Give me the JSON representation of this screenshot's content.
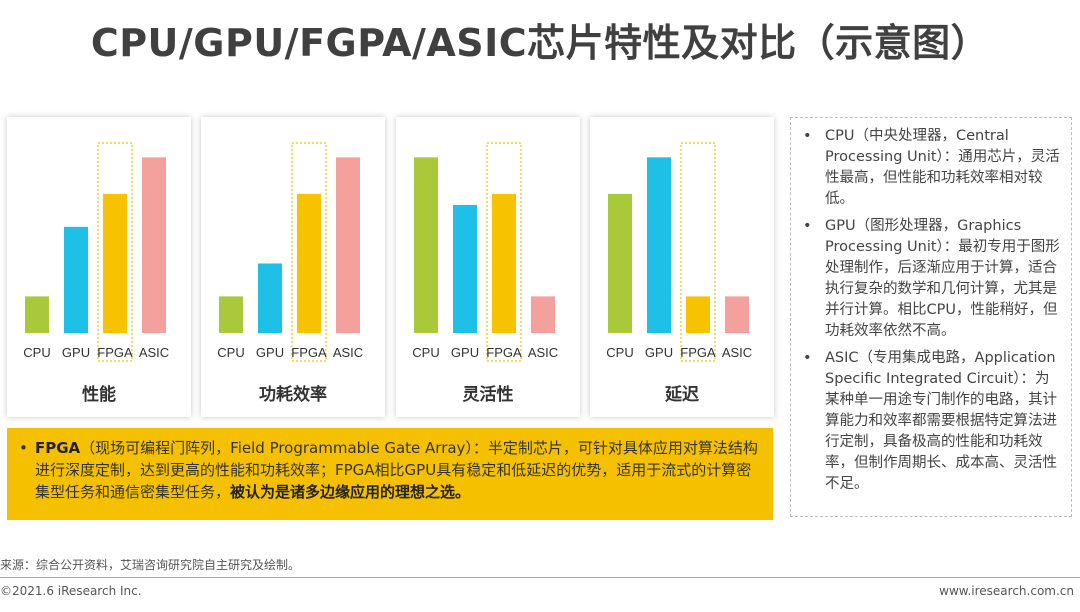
{
  "title": "CPU/GPU/FGPA/ASIC芯片特性及对比（示意图）",
  "chart_data": [
    {
      "type": "bar",
      "title": "性能",
      "categories": [
        "CPU",
        "GPU",
        "FPGA",
        "ASIC"
      ],
      "values": [
        1,
        2.9,
        3.8,
        4.8
      ],
      "colors": [
        "#a7c93a",
        "#1ec0e8",
        "#f7c300",
        "#f4a19e"
      ],
      "highlight": "FPGA",
      "ylim": [
        0,
        5
      ]
    },
    {
      "type": "bar",
      "title": "功耗效率",
      "categories": [
        "CPU",
        "GPU",
        "FPGA",
        "ASIC"
      ],
      "values": [
        1,
        1.9,
        3.8,
        4.8
      ],
      "colors": [
        "#a7c93a",
        "#1ec0e8",
        "#f7c300",
        "#f4a19e"
      ],
      "highlight": "FPGA",
      "ylim": [
        0,
        5
      ]
    },
    {
      "type": "bar",
      "title": "灵活性",
      "categories": [
        "CPU",
        "GPU",
        "FPGA",
        "ASIC"
      ],
      "values": [
        4.8,
        3.5,
        3.8,
        1
      ],
      "colors": [
        "#a7c93a",
        "#1ec0e8",
        "#f7c300",
        "#f4a19e"
      ],
      "highlight": "FPGA",
      "ylim": [
        0,
        5
      ]
    },
    {
      "type": "bar",
      "title": "延迟",
      "categories": [
        "CPU",
        "GPU",
        "FPGA",
        "ASIC"
      ],
      "values": [
        3.8,
        4.8,
        1,
        1
      ],
      "colors": [
        "#a7c93a",
        "#1ec0e8",
        "#f7c300",
        "#f4a19e"
      ],
      "highlight": "FPGA",
      "ylim": [
        0,
        5
      ]
    }
  ],
  "fpga": {
    "bullet": "•",
    "term": "FPGA",
    "body": "（现场可编程门阵列，Field Programmable Gate Array）：半定制芯片，可针对具体应用对算法结构进行深度定制，达到更高的性能和功耗效率；FPGA相比GPU具有稳定和低延迟的优势，适用于流式的计算密集型任务和通信密集型任务，",
    "emphasis": "被认为是诸多边缘应用的理想之选。"
  },
  "side": {
    "bullet": "•",
    "items": [
      "CPU（中央处理器，Central Processing Unit）：通用芯片，灵活性最高，但性能和功耗效率相对较低。",
      "GPU（图形处理器，Graphics Processing Unit）：最初专用于图形处理制作，后逐渐应用于计算，适合执行复杂的数学和几何计算，尤其是并行计算。相比CPU，性能稍好，但功耗效率依然不高。",
      "ASIC（专用集成电路，Application Specific Integrated Circuit）：为某种单一用途专门制作的电路，其计算能力和效率都需要根据特定算法进行定制，具备极高的性能和功耗效率，但制作周期长、成本高、灵活性不足。"
    ]
  },
  "footer": {
    "source": "来源：综合公开资料，艾瑞咨询研究院自主研究及绘制。",
    "copyright": "©2021.6 iResearch Inc.",
    "website": "www.iresearch.com.cn"
  }
}
